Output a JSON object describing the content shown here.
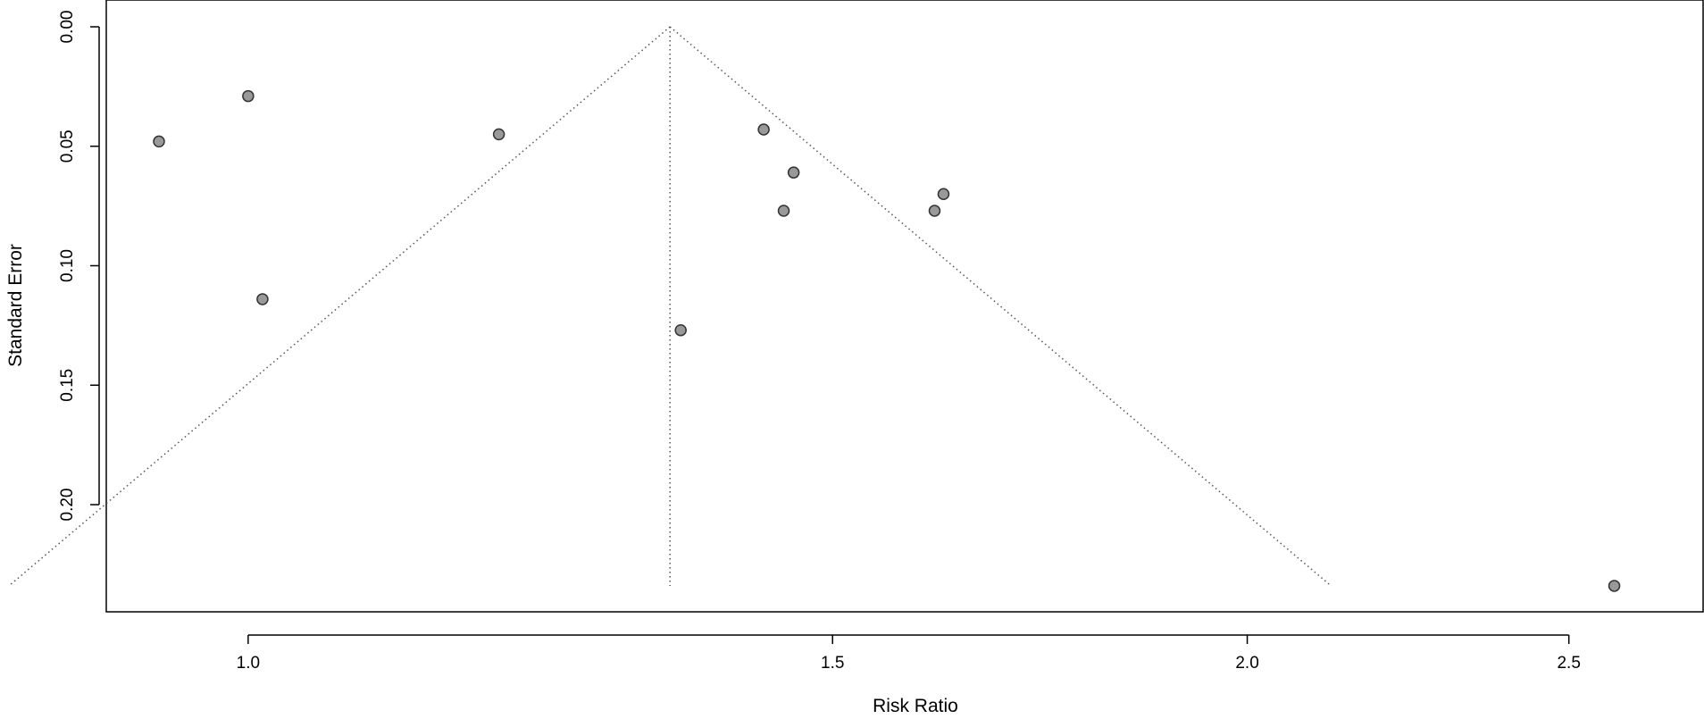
{
  "chart_data": {
    "type": "scatter",
    "plot_kind": "funnel",
    "xlabel": "Risk Ratio",
    "ylabel": "Standard Error",
    "x_scale": "log",
    "y_reversed": true,
    "xlim": [
      0.94,
      2.6
    ],
    "ylim": [
      0,
      0.24
    ],
    "x_ticks": [
      {
        "value": 1.0,
        "label": "1.0"
      },
      {
        "value": 1.5,
        "label": "1.5"
      },
      {
        "value": 2.0,
        "label": "2.0"
      },
      {
        "value": 2.5,
        "label": "2.5"
      }
    ],
    "y_ticks": [
      {
        "value": 0.0,
        "label": "0.00"
      },
      {
        "value": 0.05,
        "label": "0.05"
      },
      {
        "value": 0.1,
        "label": "0.10"
      },
      {
        "value": 0.15,
        "label": "0.15"
      },
      {
        "value": 0.2,
        "label": "0.20"
      }
    ],
    "pooled_estimate": 1.34,
    "funnel_se_max": 0.234,
    "points": [
      {
        "x": 0.94,
        "y": 0.048
      },
      {
        "x": 1.0,
        "y": 0.029
      },
      {
        "x": 1.01,
        "y": 0.114
      },
      {
        "x": 1.19,
        "y": 0.045
      },
      {
        "x": 1.35,
        "y": 0.127
      },
      {
        "x": 1.43,
        "y": 0.043
      },
      {
        "x": 1.46,
        "y": 0.061
      },
      {
        "x": 1.45,
        "y": 0.077
      },
      {
        "x": 1.61,
        "y": 0.077
      },
      {
        "x": 1.62,
        "y": 0.07
      },
      {
        "x": 2.58,
        "y": 0.234
      }
    ],
    "colors": {
      "point_fill": "#999999",
      "point_stroke": "#333333",
      "lines": "#555555",
      "frame": "#000000"
    }
  }
}
